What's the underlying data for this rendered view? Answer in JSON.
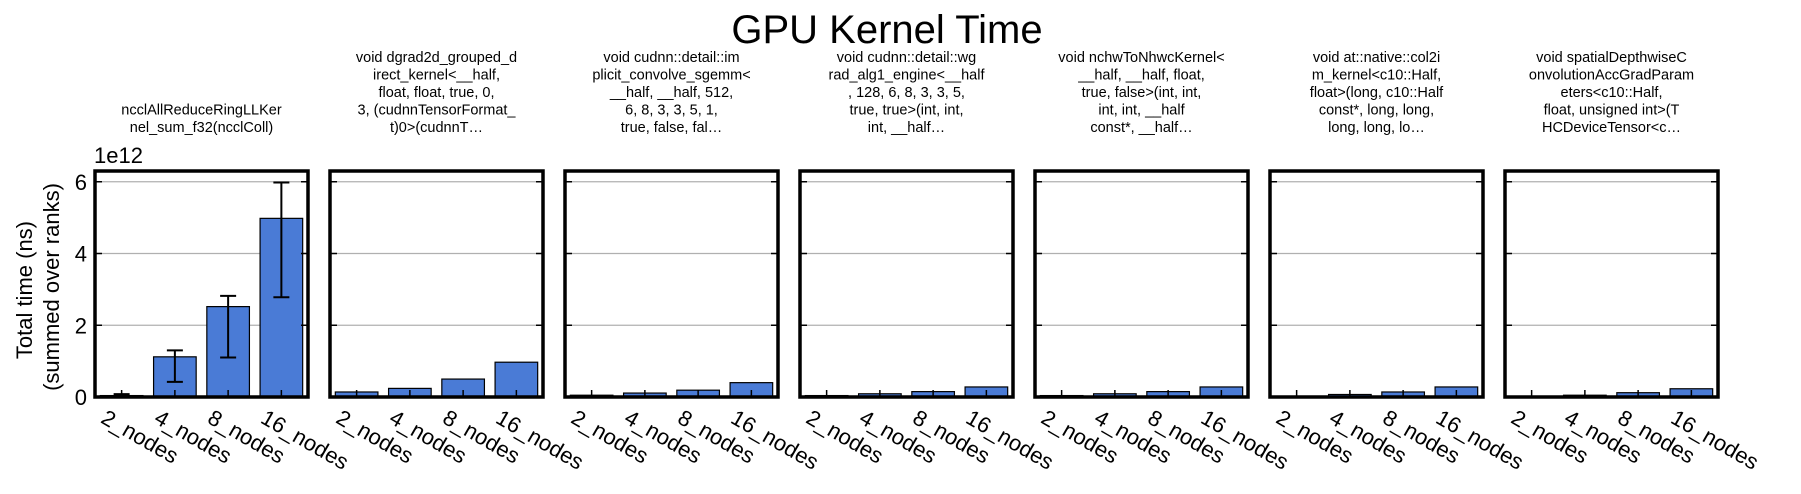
{
  "figure": {
    "title": "GPU Kernel Time",
    "ylabel_lines": [
      "Total time (ns)",
      "(summed over ranks)"
    ],
    "y_multiplier": "1e12",
    "bar_color": "#4a7bd6",
    "grid_color": "#b0b0b0"
  },
  "chart_data": [
    {
      "type": "bar",
      "title_lines": [
        "ncclAllReduceRingLLKer",
        "nel_sum_f32(ncclColl)"
      ],
      "categories": [
        "2_nodes",
        "4_nodes",
        "8_nodes",
        "16_nodes"
      ],
      "values": [
        0.04,
        1.12,
        2.52,
        4.98
      ],
      "error_low": [
        0.0,
        0.42,
        1.1,
        2.78
      ],
      "error_high": [
        0.08,
        1.3,
        2.82,
        5.98
      ],
      "ylim": [
        0,
        6.3
      ],
      "yticks": [
        0,
        2,
        4,
        6
      ],
      "grid": true
    },
    {
      "type": "bar",
      "title_lines": [
        "void dgrad2d_grouped_d",
        "irect_kernel<__half,",
        "float, float, true, 0,",
        "3, (cudnnTensorFormat_",
        "t)0>(cudnnT…"
      ],
      "categories": [
        "2_nodes",
        "4_nodes",
        "8_nodes",
        "16_nodes"
      ],
      "values": [
        0.14,
        0.24,
        0.5,
        0.97
      ],
      "ylim": [
        0,
        6.3
      ],
      "yticks": [
        0,
        2,
        4,
        6
      ],
      "grid": true
    },
    {
      "type": "bar",
      "title_lines": [
        "void cudnn::detail::im",
        "plicit_convolve_sgemm<",
        "__half, __half, 512,",
        "6, 8, 3, 3, 5, 1,",
        "true, false, fal…"
      ],
      "categories": [
        "2_nodes",
        "4_nodes",
        "8_nodes",
        "16_nodes"
      ],
      "values": [
        0.05,
        0.11,
        0.19,
        0.4
      ],
      "ylim": [
        0,
        6.3
      ],
      "yticks": [
        0,
        2,
        4,
        6
      ],
      "grid": true
    },
    {
      "type": "bar",
      "title_lines": [
        "void cudnn::detail::wg",
        "rad_alg1_engine<__half",
        ", 128, 6, 8, 3, 3, 5,",
        "true, true>(int, int,",
        "int, __half…"
      ],
      "categories": [
        "2_nodes",
        "4_nodes",
        "8_nodes",
        "16_nodes"
      ],
      "values": [
        0.04,
        0.09,
        0.15,
        0.28
      ],
      "ylim": [
        0,
        6.3
      ],
      "yticks": [
        0,
        2,
        4,
        6
      ],
      "grid": true
    },
    {
      "type": "bar",
      "title_lines": [
        "void nchwToNhwcKernel<",
        "__half, __half, float,",
        "true, false>(int, int,",
        "int, int, __half",
        "const*, __half…"
      ],
      "categories": [
        "2_nodes",
        "4_nodes",
        "8_nodes",
        "16_nodes"
      ],
      "values": [
        0.04,
        0.09,
        0.15,
        0.28
      ],
      "ylim": [
        0,
        6.3
      ],
      "yticks": [
        0,
        2,
        4,
        6
      ],
      "grid": true
    },
    {
      "type": "bar",
      "title_lines": [
        "void at::native::col2i",
        "m_kernel<c10::Half,",
        "float>(long, c10::Half",
        "const*, long, long,",
        "long, long, lo…"
      ],
      "categories": [
        "2_nodes",
        "4_nodes",
        "8_nodes",
        "16_nodes"
      ],
      "values": [
        0.02,
        0.07,
        0.14,
        0.28
      ],
      "ylim": [
        0,
        6.3
      ],
      "yticks": [
        0,
        2,
        4,
        6
      ],
      "grid": true
    },
    {
      "type": "bar",
      "title_lines": [
        "void spatialDepthwiseC",
        "onvolutionAccGradParam",
        "eters<c10::Half,",
        "float, unsigned int>(T",
        "HCDeviceTensor<c…"
      ],
      "categories": [
        "2_nodes",
        "4_nodes",
        "8_nodes",
        "16_nodes"
      ],
      "values": [
        0.02,
        0.05,
        0.12,
        0.23
      ],
      "ylim": [
        0,
        6.3
      ],
      "yticks": [
        0,
        2,
        4,
        6
      ],
      "grid": true
    }
  ]
}
